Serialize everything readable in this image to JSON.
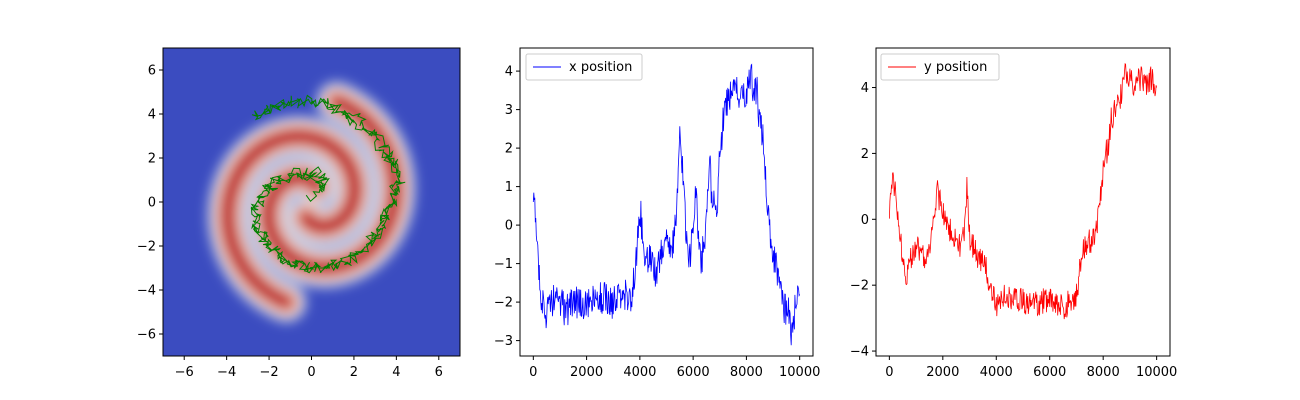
{
  "chart_data": [
    {
      "type": "heatmap",
      "title": "",
      "xlabel": "",
      "ylabel": "",
      "xlim": [
        -7,
        7
      ],
      "ylim": [
        -7,
        7
      ],
      "xticks": [
        -6,
        -4,
        -2,
        0,
        2,
        4,
        6
      ],
      "yticks": [
        -6,
        -4,
        -2,
        0,
        2,
        4,
        6
      ],
      "xtick_labels": [
        "−6",
        "−4",
        "−2",
        "0",
        "2",
        "4",
        "6"
      ],
      "ytick_labels": [
        "−6",
        "−4",
        "−2",
        "0",
        "2",
        "4",
        "6"
      ],
      "colormap": "coolwarm",
      "density": "two-arm spiral",
      "background_color": "#3b4cc0",
      "peak_color": "#b40426",
      "overlay": {
        "type": "line",
        "color": "#008000",
        "description": "sampler trajectory",
        "path": [
          [
            0.0,
            0.1
          ],
          [
            0.6,
            0.9
          ],
          [
            0.2,
            1.4
          ],
          [
            -0.6,
            1.3
          ],
          [
            -1.6,
            1.0
          ],
          [
            -2.2,
            0.4
          ],
          [
            -2.6,
            -0.4
          ],
          [
            -2.5,
            -1.4
          ],
          [
            -2.0,
            -2.1
          ],
          [
            -1.4,
            -2.6
          ],
          [
            -0.6,
            -2.9
          ],
          [
            0.4,
            -3.0
          ],
          [
            1.4,
            -2.8
          ],
          [
            2.2,
            -2.4
          ],
          [
            2.9,
            -1.8
          ],
          [
            3.3,
            -1.1
          ],
          [
            3.6,
            -0.3
          ],
          [
            3.9,
            0.5
          ],
          [
            4.0,
            1.3
          ],
          [
            3.6,
            2.1
          ],
          [
            3.0,
            2.9
          ],
          [
            2.2,
            3.6
          ],
          [
            1.2,
            4.2
          ],
          [
            0.2,
            4.5
          ],
          [
            -0.8,
            4.5
          ],
          [
            -1.8,
            4.3
          ],
          [
            -2.6,
            3.9
          ],
          [
            -2.0,
            4.3
          ],
          [
            -1.0,
            4.6
          ],
          [
            0.4,
            4.6
          ],
          [
            1.6,
            4.1
          ],
          [
            2.6,
            3.5
          ],
          [
            3.4,
            2.6
          ],
          [
            3.9,
            1.6
          ],
          [
            4.2,
            0.8
          ],
          [
            3.6,
            -0.4
          ],
          [
            3.2,
            -1.2
          ],
          [
            2.4,
            -2.2
          ],
          [
            1.6,
            -2.7
          ],
          [
            0.6,
            -3.0
          ],
          [
            -0.4,
            -2.9
          ],
          [
            -1.4,
            -2.5
          ],
          [
            -2.2,
            -1.8
          ],
          [
            -2.6,
            -1.0
          ],
          [
            -2.6,
            -0.2
          ],
          [
            -2.2,
            0.6
          ],
          [
            -1.6,
            1.0
          ],
          [
            -0.8,
            1.3
          ],
          [
            0.0,
            1.2
          ],
          [
            0.6,
            0.6
          ]
        ]
      }
    },
    {
      "type": "line",
      "xlim": [
        -500,
        10500
      ],
      "ylim": [
        -3.4,
        4.6
      ],
      "xticks": [
        0,
        2000,
        4000,
        6000,
        8000,
        10000
      ],
      "yticks": [
        -3,
        -2,
        -1,
        0,
        1,
        2,
        3,
        4
      ],
      "xtick_labels": [
        "0",
        "2000",
        "4000",
        "6000",
        "8000",
        "10000"
      ],
      "ytick_labels": [
        "−3",
        "−2",
        "−1",
        "0",
        "1",
        "2",
        "3",
        "4"
      ],
      "legend": "top-left",
      "series": [
        {
          "name": "x position",
          "color": "#0000ff",
          "x": [
            0,
            150,
            300,
            500,
            800,
            1200,
            1600,
            2000,
            2500,
            3000,
            3400,
            3700,
            3800,
            3900,
            4000,
            4100,
            4200,
            4400,
            4600,
            4800,
            5000,
            5200,
            5300,
            5400,
            5500,
            5600,
            5700,
            5800,
            5900,
            6000,
            6100,
            6200,
            6300,
            6400,
            6500,
            6600,
            6700,
            6800,
            6900,
            7000,
            7100,
            7200,
            7400,
            7600,
            7800,
            8000,
            8100,
            8200,
            8300,
            8400,
            8500,
            8600,
            8700,
            8800,
            8900,
            9000,
            9100,
            9200,
            9300,
            9400,
            9500,
            9600,
            9700,
            9800,
            9900,
            10000
          ],
          "y": [
            0.8,
            -0.5,
            -1.8,
            -2.4,
            -1.8,
            -2.2,
            -2.0,
            -2.1,
            -1.9,
            -2.0,
            -1.8,
            -1.9,
            -1.3,
            -0.5,
            0.5,
            -0.3,
            -1.0,
            -0.9,
            -1.2,
            -0.8,
            -0.2,
            -0.8,
            0.0,
            0.7,
            2.2,
            1.5,
            0.2,
            -0.8,
            -0.7,
            -0.3,
            0.8,
            -0.3,
            -1.0,
            -0.5,
            0.0,
            1.8,
            0.8,
            0.5,
            0.2,
            1.8,
            2.5,
            3.2,
            3.3,
            3.5,
            3.2,
            3.5,
            3.8,
            3.8,
            3.4,
            3.5,
            2.5,
            2.4,
            1.5,
            0.5,
            -0.3,
            -0.8,
            -1.0,
            -1.2,
            -1.8,
            -2.1,
            -2.3,
            -2.2,
            -2.8,
            -2.3,
            -2.0,
            -1.8
          ]
        }
      ]
    },
    {
      "type": "line",
      "xlim": [
        -500,
        10500
      ],
      "ylim": [
        -4.15,
        5.2
      ],
      "xticks": [
        0,
        2000,
        4000,
        6000,
        8000,
        10000
      ],
      "yticks": [
        -4,
        -2,
        0,
        2,
        4
      ],
      "xtick_labels": [
        "0",
        "2000",
        "4000",
        "6000",
        "8000",
        "10000"
      ],
      "ytick_labels": [
        "−4",
        "−2",
        "0",
        "2",
        "4"
      ],
      "legend": "top-left",
      "series": [
        {
          "name": "y position",
          "color": "#ff0000",
          "x": [
            0,
            100,
            200,
            400,
            600,
            800,
            1000,
            1200,
            1400,
            1600,
            1800,
            2000,
            2200,
            2400,
            2600,
            2800,
            2900,
            3000,
            3200,
            3400,
            3600,
            3800,
            4000,
            4300,
            4600,
            5000,
            5500,
            6000,
            6500,
            7000,
            7200,
            7400,
            7600,
            7800,
            8000,
            8100,
            8200,
            8300,
            8400,
            8500,
            8600,
            8700,
            8800,
            9000,
            9200,
            9400,
            9600,
            9800,
            10000
          ],
          "y": [
            0.0,
            1.3,
            1.0,
            -0.5,
            -1.8,
            -1.2,
            -0.8,
            -1.0,
            -1.2,
            -0.5,
            0.8,
            0.2,
            -0.2,
            -0.6,
            -0.8,
            -0.5,
            1.0,
            -0.5,
            -1.0,
            -1.2,
            -1.3,
            -2.2,
            -2.6,
            -2.3,
            -2.4,
            -2.5,
            -2.6,
            -2.4,
            -2.7,
            -2.3,
            -1.0,
            -0.7,
            -0.6,
            0.0,
            1.5,
            2.0,
            2.2,
            3.0,
            3.3,
            3.4,
            3.6,
            3.8,
            4.5,
            4.2,
            4.1,
            4.3,
            4.0,
            4.3,
            4.0
          ]
        }
      ]
    }
  ]
}
